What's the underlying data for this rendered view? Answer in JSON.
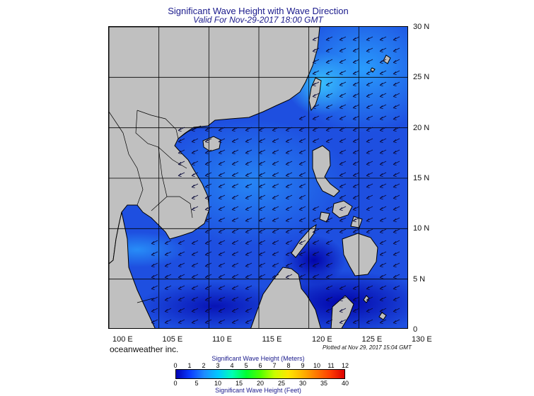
{
  "header": {
    "title": "Significant Wave Height with Wave Direction",
    "subtitle": "Valid For Nov-29-2017 18:00 GMT"
  },
  "map": {
    "lon_labels": [
      "100 E",
      "105 E",
      "110 E",
      "115 E",
      "120 E",
      "125 E",
      "130 E"
    ],
    "lat_labels": [
      "30 N",
      "25 N",
      "20 N",
      "15 N",
      "10 N",
      "5 N",
      "0"
    ],
    "land_color": "#c0c0c0",
    "ocean_base_color": "#1e4fe0",
    "arrow_color": "#0a0a3a",
    "dominant_wave_direction": "from northeast toward southwest"
  },
  "footer": {
    "credit": "oceanweather inc.",
    "plotted": "Plotted at Nov 29, 2017 15:04 GMT"
  },
  "legend": {
    "meters_title": "Significant Wave Height (Meters)",
    "feet_title": "Significant Wave Height (Feet)",
    "meters_ticks": [
      "0",
      "1",
      "2",
      "3",
      "4",
      "5",
      "6",
      "7",
      "8",
      "9",
      "10",
      "11",
      "12"
    ],
    "feet_ticks": [
      "0",
      "5",
      "10",
      "15",
      "20",
      "25",
      "30",
      "35",
      "40"
    ],
    "colors": [
      "#0000b4",
      "#0a3cff",
      "#1e8cff",
      "#00c8ff",
      "#00ffb4",
      "#00ff32",
      "#50ff00",
      "#c8ff00",
      "#ffe600",
      "#ffb400",
      "#ff7800",
      "#ff3c00",
      "#dc0000"
    ]
  }
}
